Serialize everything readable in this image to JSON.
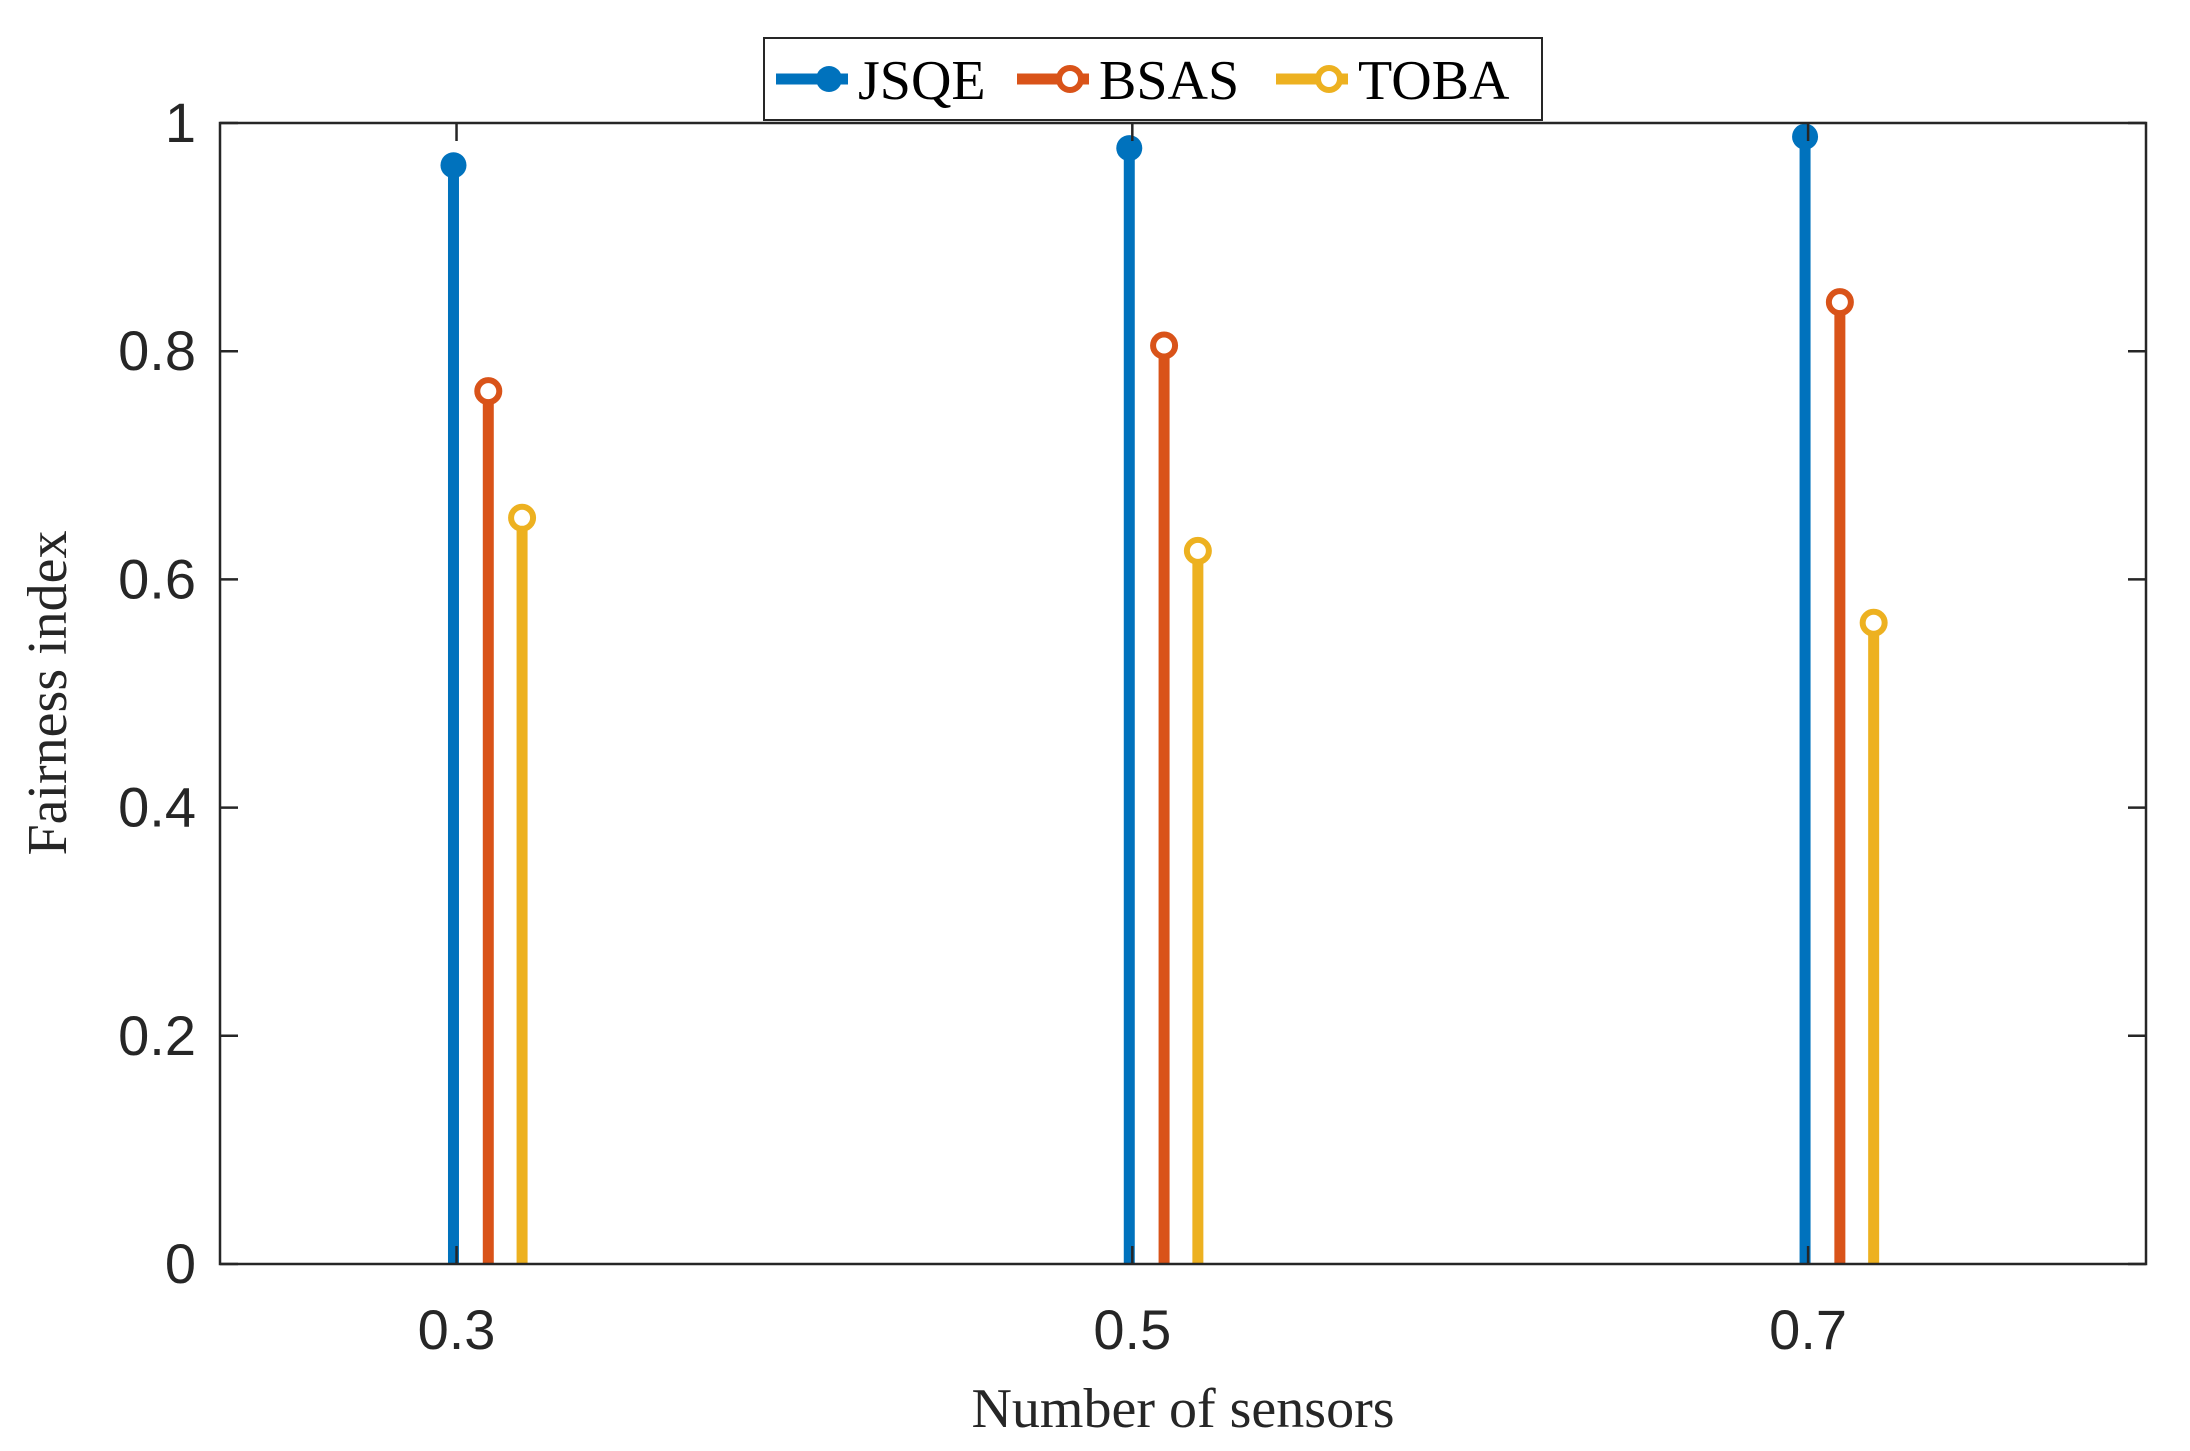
{
  "chart_data": {
    "type": "stem",
    "x": [
      0.3,
      0.5,
      0.7
    ],
    "x_tick_labels": [
      "0.3",
      "0.5",
      "0.7"
    ],
    "series": [
      {
        "name": "JSQE",
        "color": "#0072BD",
        "marker": "filled-circle",
        "values": [
          0.963,
          0.978,
          0.988
        ]
      },
      {
        "name": "BSAS",
        "color": "#D95319",
        "marker": "open-circle",
        "values": [
          0.765,
          0.805,
          0.843
        ]
      },
      {
        "name": "TOBA",
        "color": "#EDB120",
        "marker": "open-circle",
        "values": [
          0.654,
          0.625,
          0.562
        ]
      }
    ],
    "xlabel": "Number of sensors",
    "ylabel": "Fairness index",
    "ylim": [
      0,
      1
    ],
    "y_ticks": [
      0,
      0.2,
      0.4,
      0.6,
      0.8,
      1
    ],
    "y_tick_labels": [
      "0",
      "0.2",
      "0.4",
      "0.6",
      "0.8",
      "1"
    ],
    "legend_position": "top-center",
    "grid": false
  }
}
